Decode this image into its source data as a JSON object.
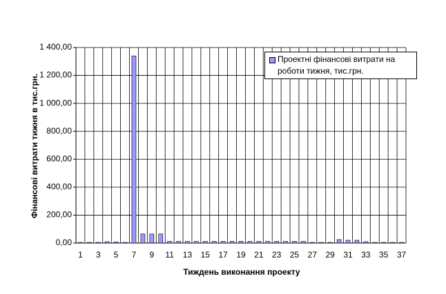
{
  "chart_data": {
    "type": "bar",
    "y_label": "Фінансові витрати тижня в тис.грн.",
    "x_label": "Тиждень виконання проекту",
    "categories": [
      "1",
      null,
      "3",
      null,
      "5",
      null,
      "7",
      null,
      "9",
      null,
      "11",
      null,
      "13",
      null,
      "15",
      null,
      "17",
      null,
      "19",
      null,
      "21",
      null,
      "23",
      null,
      "25",
      null,
      "27",
      null,
      "29",
      null,
      "31",
      null,
      "33",
      null,
      "35",
      null,
      "37"
    ],
    "series": [
      {
        "name": "Проектні фінансові витрати на роботи тижня, тис.грн.",
        "color": "#9999ff",
        "values": [
          5,
          5,
          5,
          10,
          8,
          5,
          1340,
          65,
          65,
          65,
          12,
          12,
          12,
          12,
          12,
          12,
          12,
          12,
          12,
          12,
          12,
          12,
          12,
          12,
          12,
          12,
          5,
          5,
          5,
          25,
          20,
          20,
          10,
          5,
          5,
          5,
          5
        ]
      }
    ],
    "ylim": [
      0,
      1400
    ],
    "yticks": [
      {
        "value": 0,
        "label": "0,00"
      },
      {
        "value": 200,
        "label": "200,00"
      },
      {
        "value": 400,
        "label": "400,00"
      },
      {
        "value": 600,
        "label": "600,00"
      },
      {
        "value": 800,
        "label": "800,00"
      },
      {
        "value": 1000,
        "label": "1 000,00"
      },
      {
        "value": 1200,
        "label": "1 200,00"
      },
      {
        "value": 1400,
        "label": "1 400,00"
      }
    ],
    "grid": true
  }
}
